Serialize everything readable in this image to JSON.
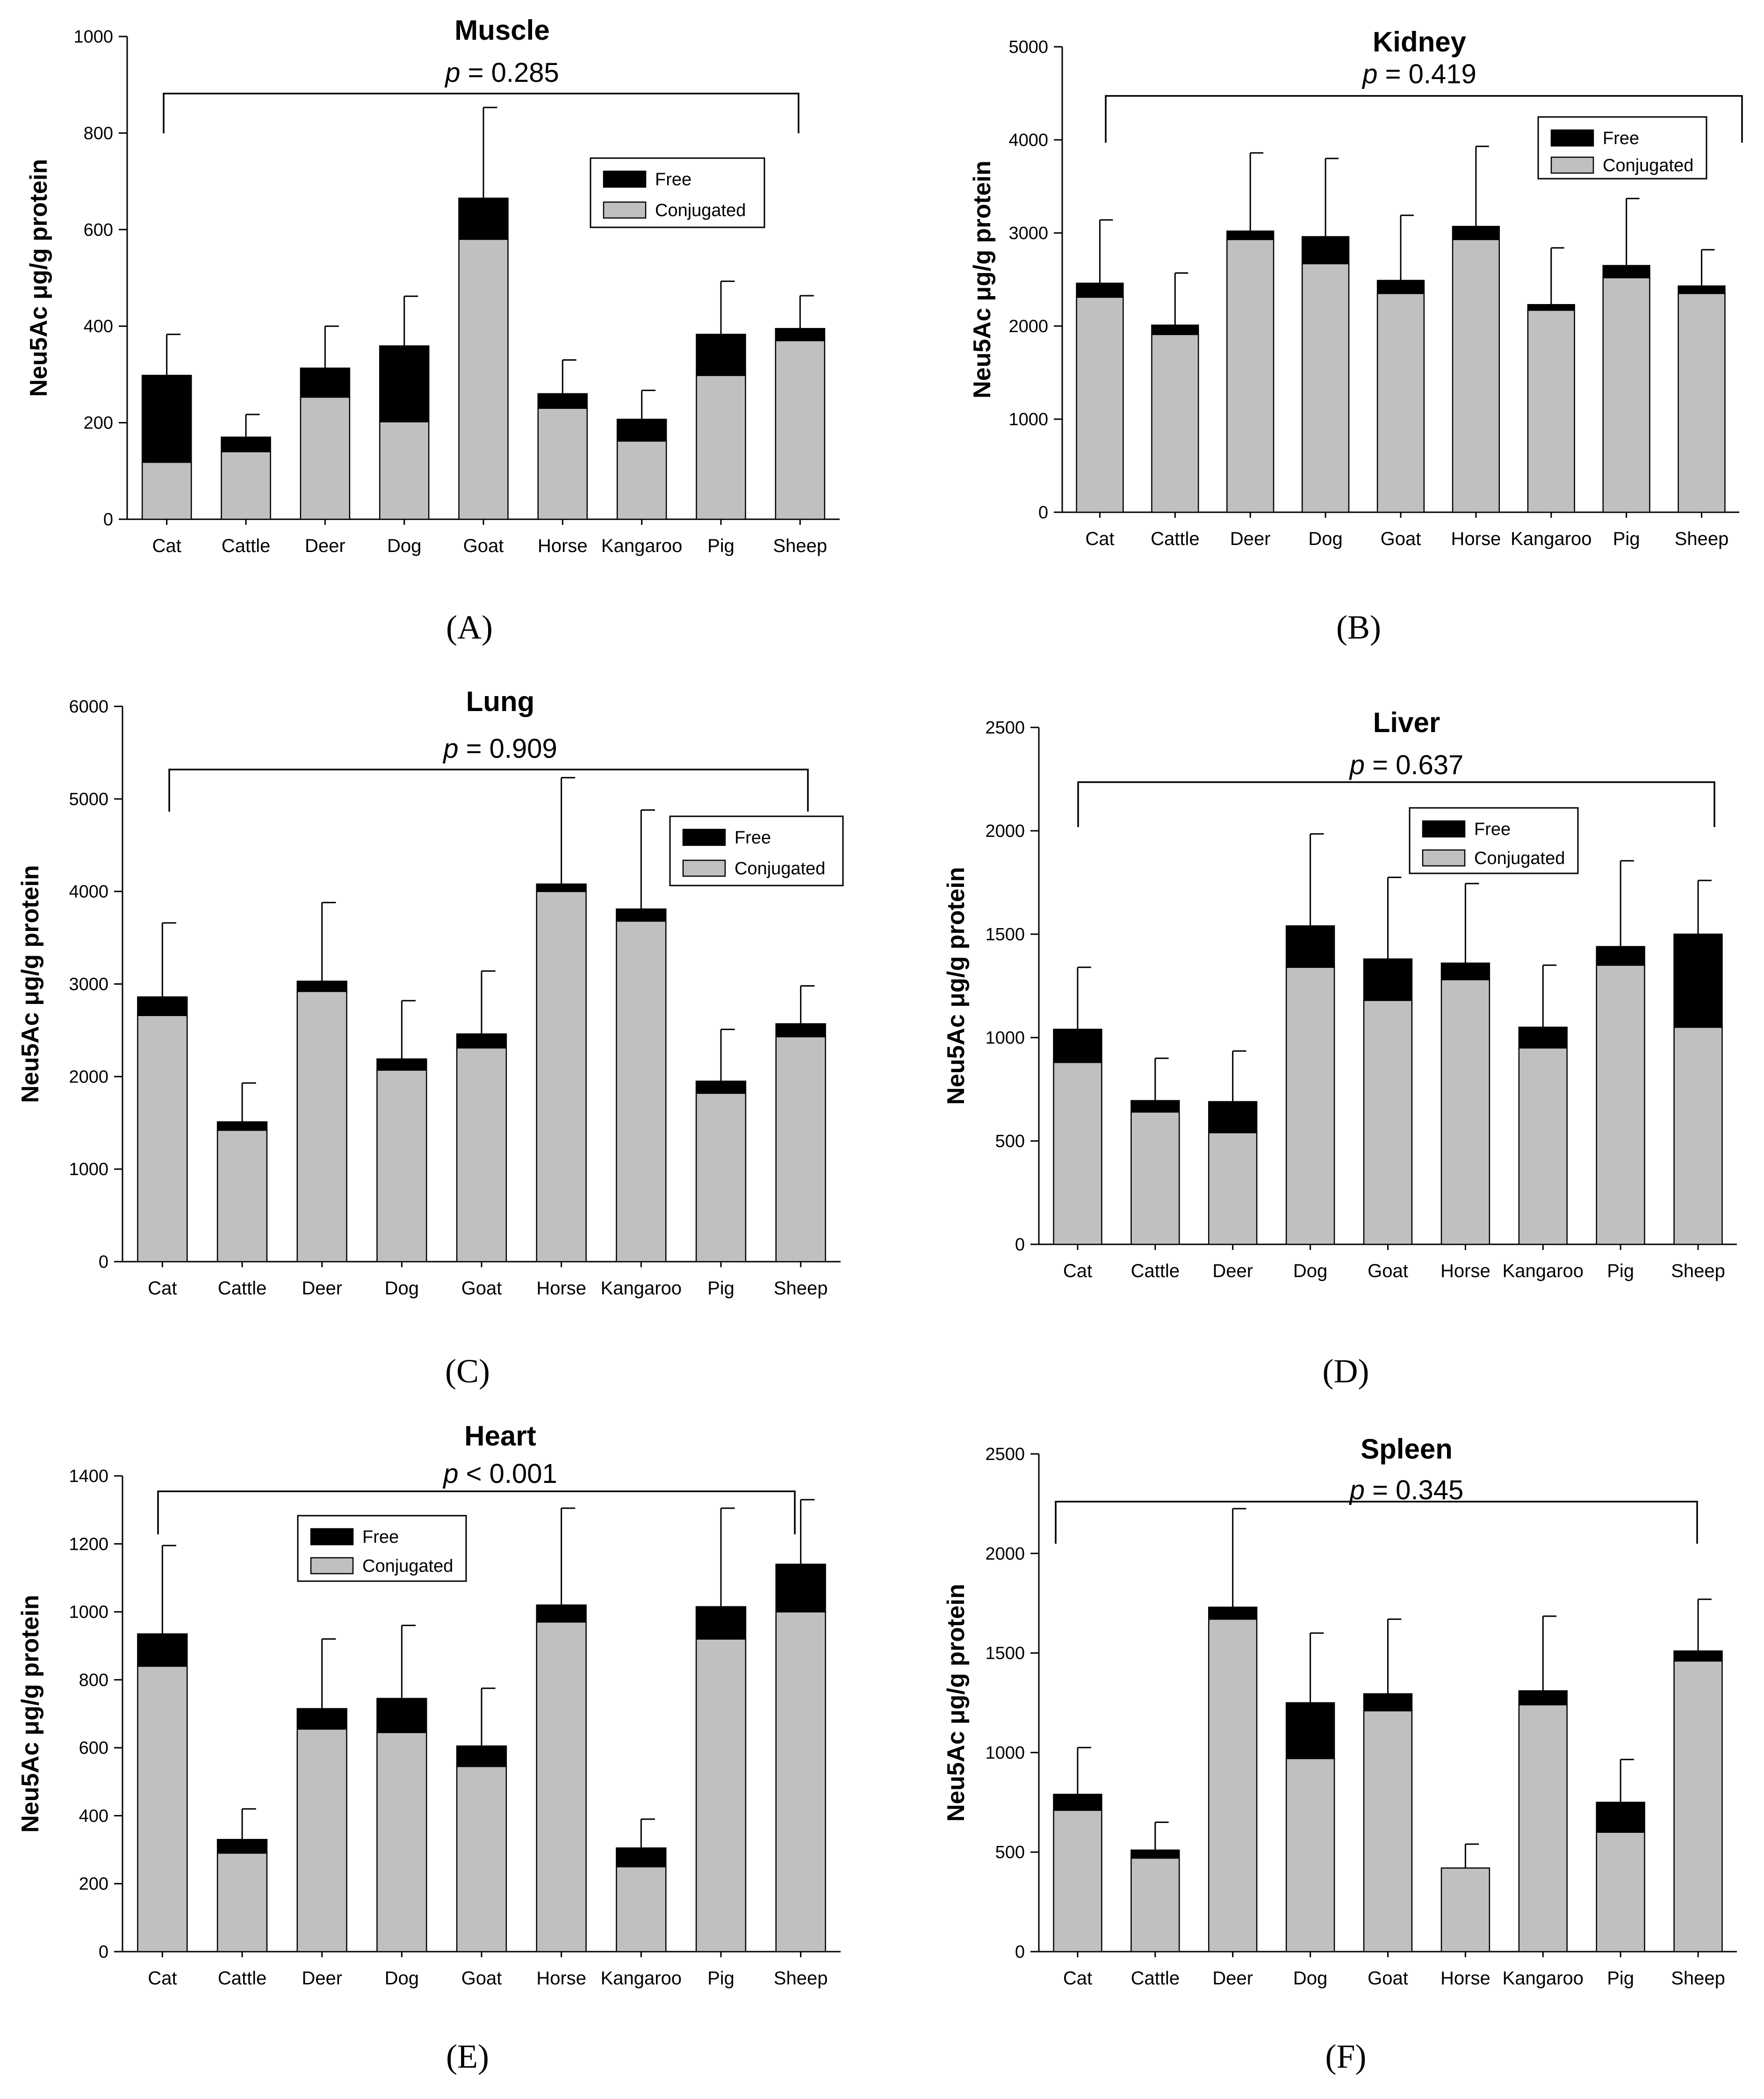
{
  "colors": {
    "free": "#000000",
    "conjugated": "#c0c0c0",
    "axis": "#000000",
    "background": "#ffffff"
  },
  "chart_data": [
    {
      "type": "bar",
      "stacked": true,
      "panel_label": "(A)",
      "title": "Muscle",
      "ylabel": "Neu5Ac μg/g protein",
      "xlabel": "",
      "ylim": [
        0,
        1000
      ],
      "yticks": [
        0,
        200,
        400,
        600,
        800,
        1000
      ],
      "categories": [
        "Cat",
        "Cattle",
        "Deer",
        "Dog",
        "Goat",
        "Horse",
        "Kangaroo",
        "Pig",
        "Sheep"
      ],
      "series": [
        {
          "name": "Conjugated",
          "values": [
            118,
            140,
            253,
            202,
            580,
            230,
            162,
            298,
            370
          ]
        },
        {
          "name": "Free",
          "values": [
            180,
            30,
            60,
            157,
            85,
            30,
            45,
            85,
            25
          ]
        }
      ],
      "error_top": [
        383,
        217,
        400,
        462,
        853,
        330,
        267,
        493,
        463
      ],
      "legend": {
        "position": "top-right",
        "entries": [
          "Free",
          "Conjugated"
        ]
      },
      "annotation": {
        "p_symbol": "p",
        "p_rest": " = 0.285"
      }
    },
    {
      "type": "bar",
      "stacked": true,
      "panel_label": "(B)",
      "title": "Kidney",
      "ylabel": "Neu5Ac μg/g protein",
      "xlabel": "",
      "ylim": [
        0,
        5000
      ],
      "yticks": [
        0,
        1000,
        2000,
        3000,
        4000,
        5000
      ],
      "categories": [
        "Cat",
        "Cattle",
        "Deer",
        "Dog",
        "Goat",
        "Horse",
        "Kangaroo",
        "Pig",
        "Sheep"
      ],
      "series": [
        {
          "name": "Conjugated",
          "values": [
            2310,
            1910,
            2930,
            2670,
            2350,
            2930,
            2170,
            2520,
            2350
          ]
        },
        {
          "name": "Free",
          "values": [
            150,
            100,
            90,
            290,
            140,
            140,
            60,
            130,
            80
          ]
        }
      ],
      "error_top": [
        3140,
        2570,
        3860,
        3800,
        3190,
        3930,
        2840,
        3370,
        2820
      ],
      "legend": {
        "position": "top-right",
        "entries": [
          "Free",
          "Conjugated"
        ]
      },
      "annotation": {
        "p_symbol": "p",
        "p_rest": " = 0.419"
      }
    },
    {
      "type": "bar",
      "stacked": true,
      "panel_label": "(C)",
      "title": "Lung",
      "ylabel": "Neu5Ac μg/g protein",
      "xlabel": "",
      "ylim": [
        0,
        6000
      ],
      "yticks": [
        0,
        1000,
        2000,
        3000,
        4000,
        5000,
        6000
      ],
      "categories": [
        "Cat",
        "Cattle",
        "Deer",
        "Dog",
        "Goat",
        "Horse",
        "Kangaroo",
        "Pig",
        "Sheep"
      ],
      "series": [
        {
          "name": "Conjugated",
          "values": [
            2660,
            1420,
            2920,
            2070,
            2310,
            4000,
            3680,
            1820,
            2430
          ]
        },
        {
          "name": "Free",
          "values": [
            200,
            90,
            110,
            120,
            150,
            80,
            130,
            130,
            140
          ]
        }
      ],
      "error_top": [
        3660,
        1930,
        3880,
        2820,
        3140,
        5230,
        4880,
        2510,
        2980
      ],
      "legend": {
        "position": "top-right",
        "entries": [
          "Free",
          "Conjugated"
        ]
      },
      "annotation": {
        "p_symbol": "p",
        "p_rest": " = 0.909"
      }
    },
    {
      "type": "bar",
      "stacked": true,
      "panel_label": "(D)",
      "title": "Liver",
      "ylabel": "Neu5Ac μg/g protein",
      "xlabel": "",
      "ylim": [
        0,
        2500
      ],
      "yticks": [
        0,
        500,
        1000,
        1500,
        2000,
        2500
      ],
      "categories": [
        "Cat",
        "Cattle",
        "Deer",
        "Dog",
        "Goat",
        "Horse",
        "Kangaroo",
        "Pig",
        "Sheep"
      ],
      "series": [
        {
          "name": "Conjugated",
          "values": [
            880,
            640,
            540,
            1340,
            1180,
            1280,
            950,
            1350,
            1050
          ]
        },
        {
          "name": "Free",
          "values": [
            160,
            55,
            150,
            200,
            200,
            80,
            100,
            90,
            450
          ]
        }
      ],
      "error_top": [
        1340,
        900,
        935,
        1985,
        1775,
        1745,
        1350,
        1855,
        1760
      ],
      "legend": {
        "position": "top-right",
        "entries": [
          "Free",
          "Conjugated"
        ]
      },
      "annotation": {
        "p_symbol": "p",
        "p_rest": " = 0.637"
      }
    },
    {
      "type": "bar",
      "stacked": true,
      "panel_label": "(E)",
      "title": "Heart",
      "ylabel": "Neu5Ac μg/g protein",
      "xlabel": "",
      "ylim": [
        0,
        1400
      ],
      "yticks": [
        0,
        200,
        400,
        600,
        800,
        1000,
        1200,
        1400
      ],
      "categories": [
        "Cat",
        "Cattle",
        "Deer",
        "Dog",
        "Goat",
        "Horse",
        "Kangaroo",
        "Pig",
        "Sheep"
      ],
      "series": [
        {
          "name": "Conjugated",
          "values": [
            840,
            290,
            655,
            645,
            545,
            970,
            250,
            920,
            1000
          ]
        },
        {
          "name": "Free",
          "values": [
            95,
            40,
            60,
            100,
            60,
            50,
            55,
            95,
            140
          ]
        }
      ],
      "error_top": [
        1195,
        420,
        920,
        960,
        775,
        1305,
        390,
        1305,
        1330
      ],
      "legend": {
        "position": "top-left",
        "entries": [
          "Free",
          "Conjugated"
        ]
      },
      "annotation": {
        "p_symbol": "p",
        "p_rest": " < 0.001"
      }
    },
    {
      "type": "bar",
      "stacked": true,
      "panel_label": "(F)",
      "title": "Spleen",
      "ylabel": "Neu5Ac μg/g protein",
      "xlabel": "",
      "ylim": [
        0,
        2500
      ],
      "yticks": [
        0,
        500,
        1000,
        1500,
        2000,
        2500
      ],
      "categories": [
        "Cat",
        "Cattle",
        "Deer",
        "Dog",
        "Goat",
        "Horse",
        "Kangaroo",
        "Pig",
        "Sheep"
      ],
      "series": [
        {
          "name": "Conjugated",
          "values": [
            710,
            470,
            1670,
            970,
            1210,
            420,
            1240,
            600,
            1460
          ]
        },
        {
          "name": "Free",
          "values": [
            80,
            40,
            60,
            280,
            85,
            0,
            70,
            150,
            50
          ]
        }
      ],
      "error_top": [
        1025,
        650,
        2225,
        1600,
        1670,
        540,
        1685,
        965,
        1770
      ],
      "legend": {
        "position": "none",
        "entries": []
      },
      "annotation": {
        "p_symbol": "p",
        "p_rest": " = 0.345"
      }
    }
  ]
}
